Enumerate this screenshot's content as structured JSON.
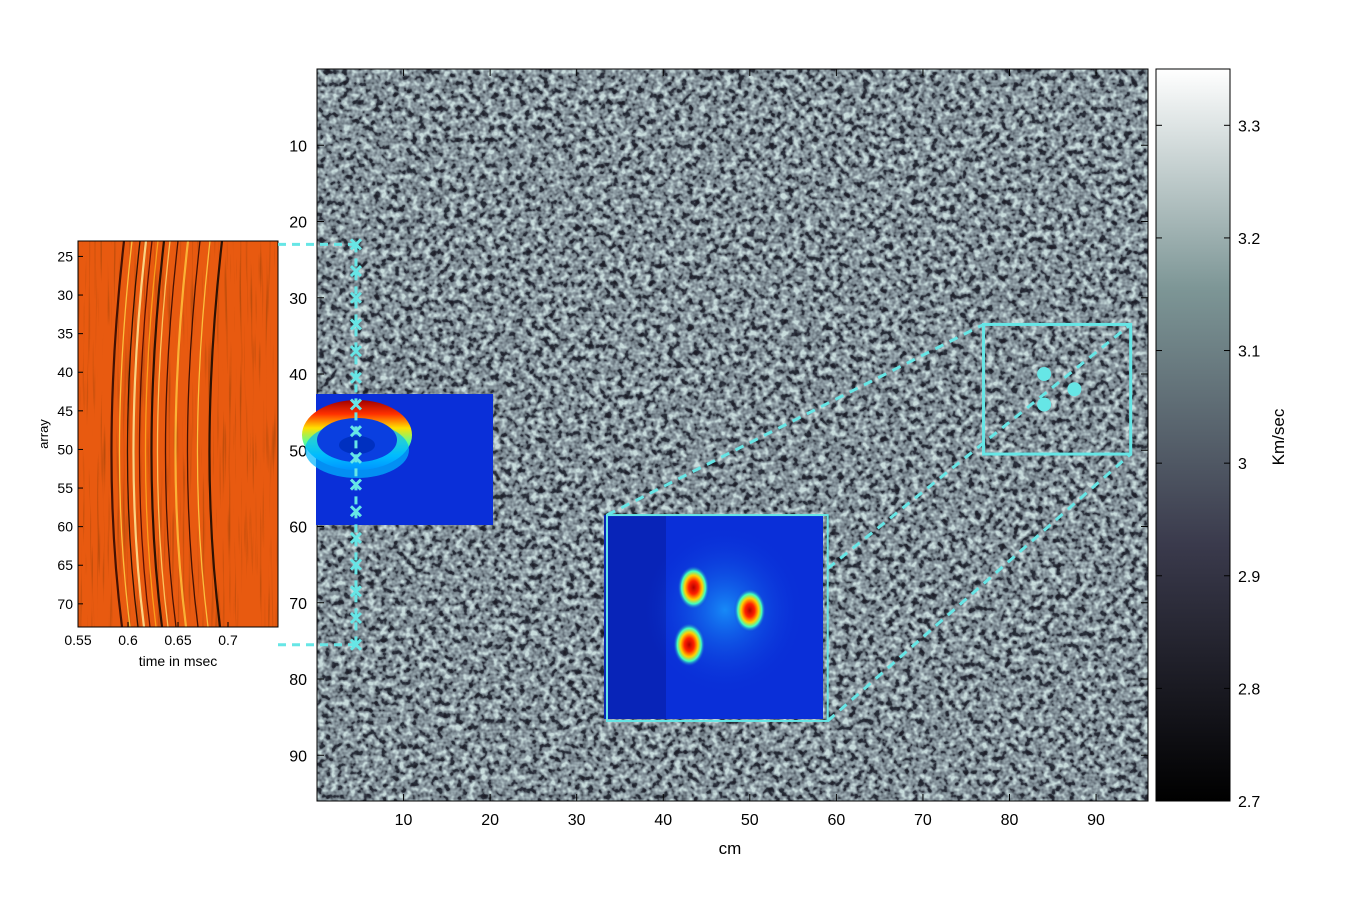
{
  "chart_data": [
    {
      "type": "heatmap",
      "role": "velocity-map",
      "xlabel": "cm",
      "ylabel": "",
      "xlim": [
        0,
        96
      ],
      "ylim": [
        0,
        96
      ],
      "y_inverted": true,
      "xticks": [
        "10",
        "20",
        "30",
        "40",
        "50",
        "60",
        "70",
        "80",
        "90"
      ],
      "yticks": [
        "10",
        "20",
        "30",
        "40",
        "50",
        "60",
        "70",
        "80",
        "90"
      ],
      "colormap": "bone",
      "transducer_x": 4.5,
      "transducer_y": [
        23,
        26.5,
        30,
        33.5,
        37,
        40.5,
        44,
        47.5,
        51,
        54.5,
        58,
        61.5,
        65,
        68.5,
        72,
        75.5
      ],
      "target_points": [
        {
          "x": 84,
          "y": 40
        },
        {
          "x": 84,
          "y": 44
        },
        {
          "x": 87.5,
          "y": 42
        }
      ],
      "zoom_region": {
        "x0": 77,
        "x1": 94,
        "y0": 33.5,
        "y1": 50.5
      },
      "inset_region": {
        "x0": 33.5,
        "x1": 59,
        "y0": 58.5,
        "y1": 85.5
      }
    },
    {
      "type": "heatmap",
      "role": "colorbar",
      "ylabel": "Km/sec",
      "ylim": [
        2.7,
        3.35
      ],
      "yticks": [
        "2.7",
        "2.8",
        "2.9",
        "3",
        "3.1",
        "3.2",
        "3.3"
      ],
      "colormap": "bone"
    },
    {
      "type": "heatmap",
      "role": "array-data",
      "xlabel": "time in  msec",
      "ylabel": "array",
      "xlim": [
        0.55,
        0.75
      ],
      "ylim": [
        23,
        73
      ],
      "xticks": [
        "0.55",
        "0.6",
        "0.65",
        "0.7"
      ],
      "yticks": [
        "25",
        "30",
        "35",
        "40",
        "45",
        "50",
        "55",
        "60",
        "65",
        "70"
      ],
      "colormap": "hot"
    },
    {
      "type": "heatmap",
      "role": "reconstruction-inset",
      "colormap": "jet",
      "peaks": [
        {
          "x": 43.5,
          "y": 68
        },
        {
          "x": 50,
          "y": 71
        },
        {
          "x": 43,
          "y": 75.5
        }
      ]
    }
  ],
  "colors": {
    "annotation": "#66e6e6",
    "inset_background": "#0a2fd8",
    "array_base": "#e85a10"
  }
}
